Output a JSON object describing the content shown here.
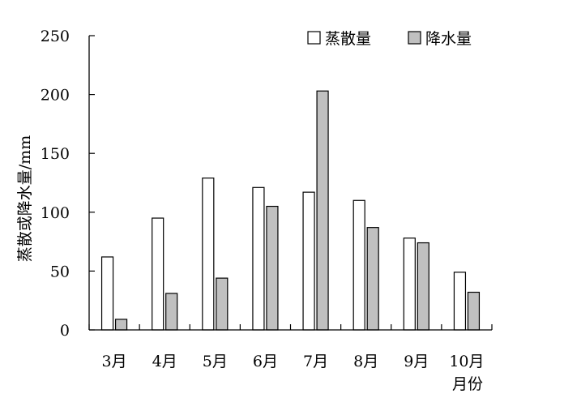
{
  "chart_data": {
    "type": "bar",
    "categories": [
      "3月",
      "4月",
      "5月",
      "6月",
      "7月",
      "8月",
      "9月",
      "10月"
    ],
    "series": [
      {
        "name": "蒸散量",
        "values": [
          62,
          95,
          129,
          121,
          117,
          110,
          78,
          49
        ],
        "color": "#ffffff"
      },
      {
        "name": "降水量",
        "values": [
          9,
          31,
          44,
          105,
          203,
          87,
          74,
          32
        ],
        "color": "#c0c0c0"
      }
    ],
    "xlabel": "月份",
    "ylabel": "蒸散或降水量/mm",
    "ylim": [
      0,
      250
    ],
    "yticks": [
      0,
      50,
      100,
      150,
      200,
      250
    ],
    "grid": false,
    "legend_position": "top-right"
  }
}
